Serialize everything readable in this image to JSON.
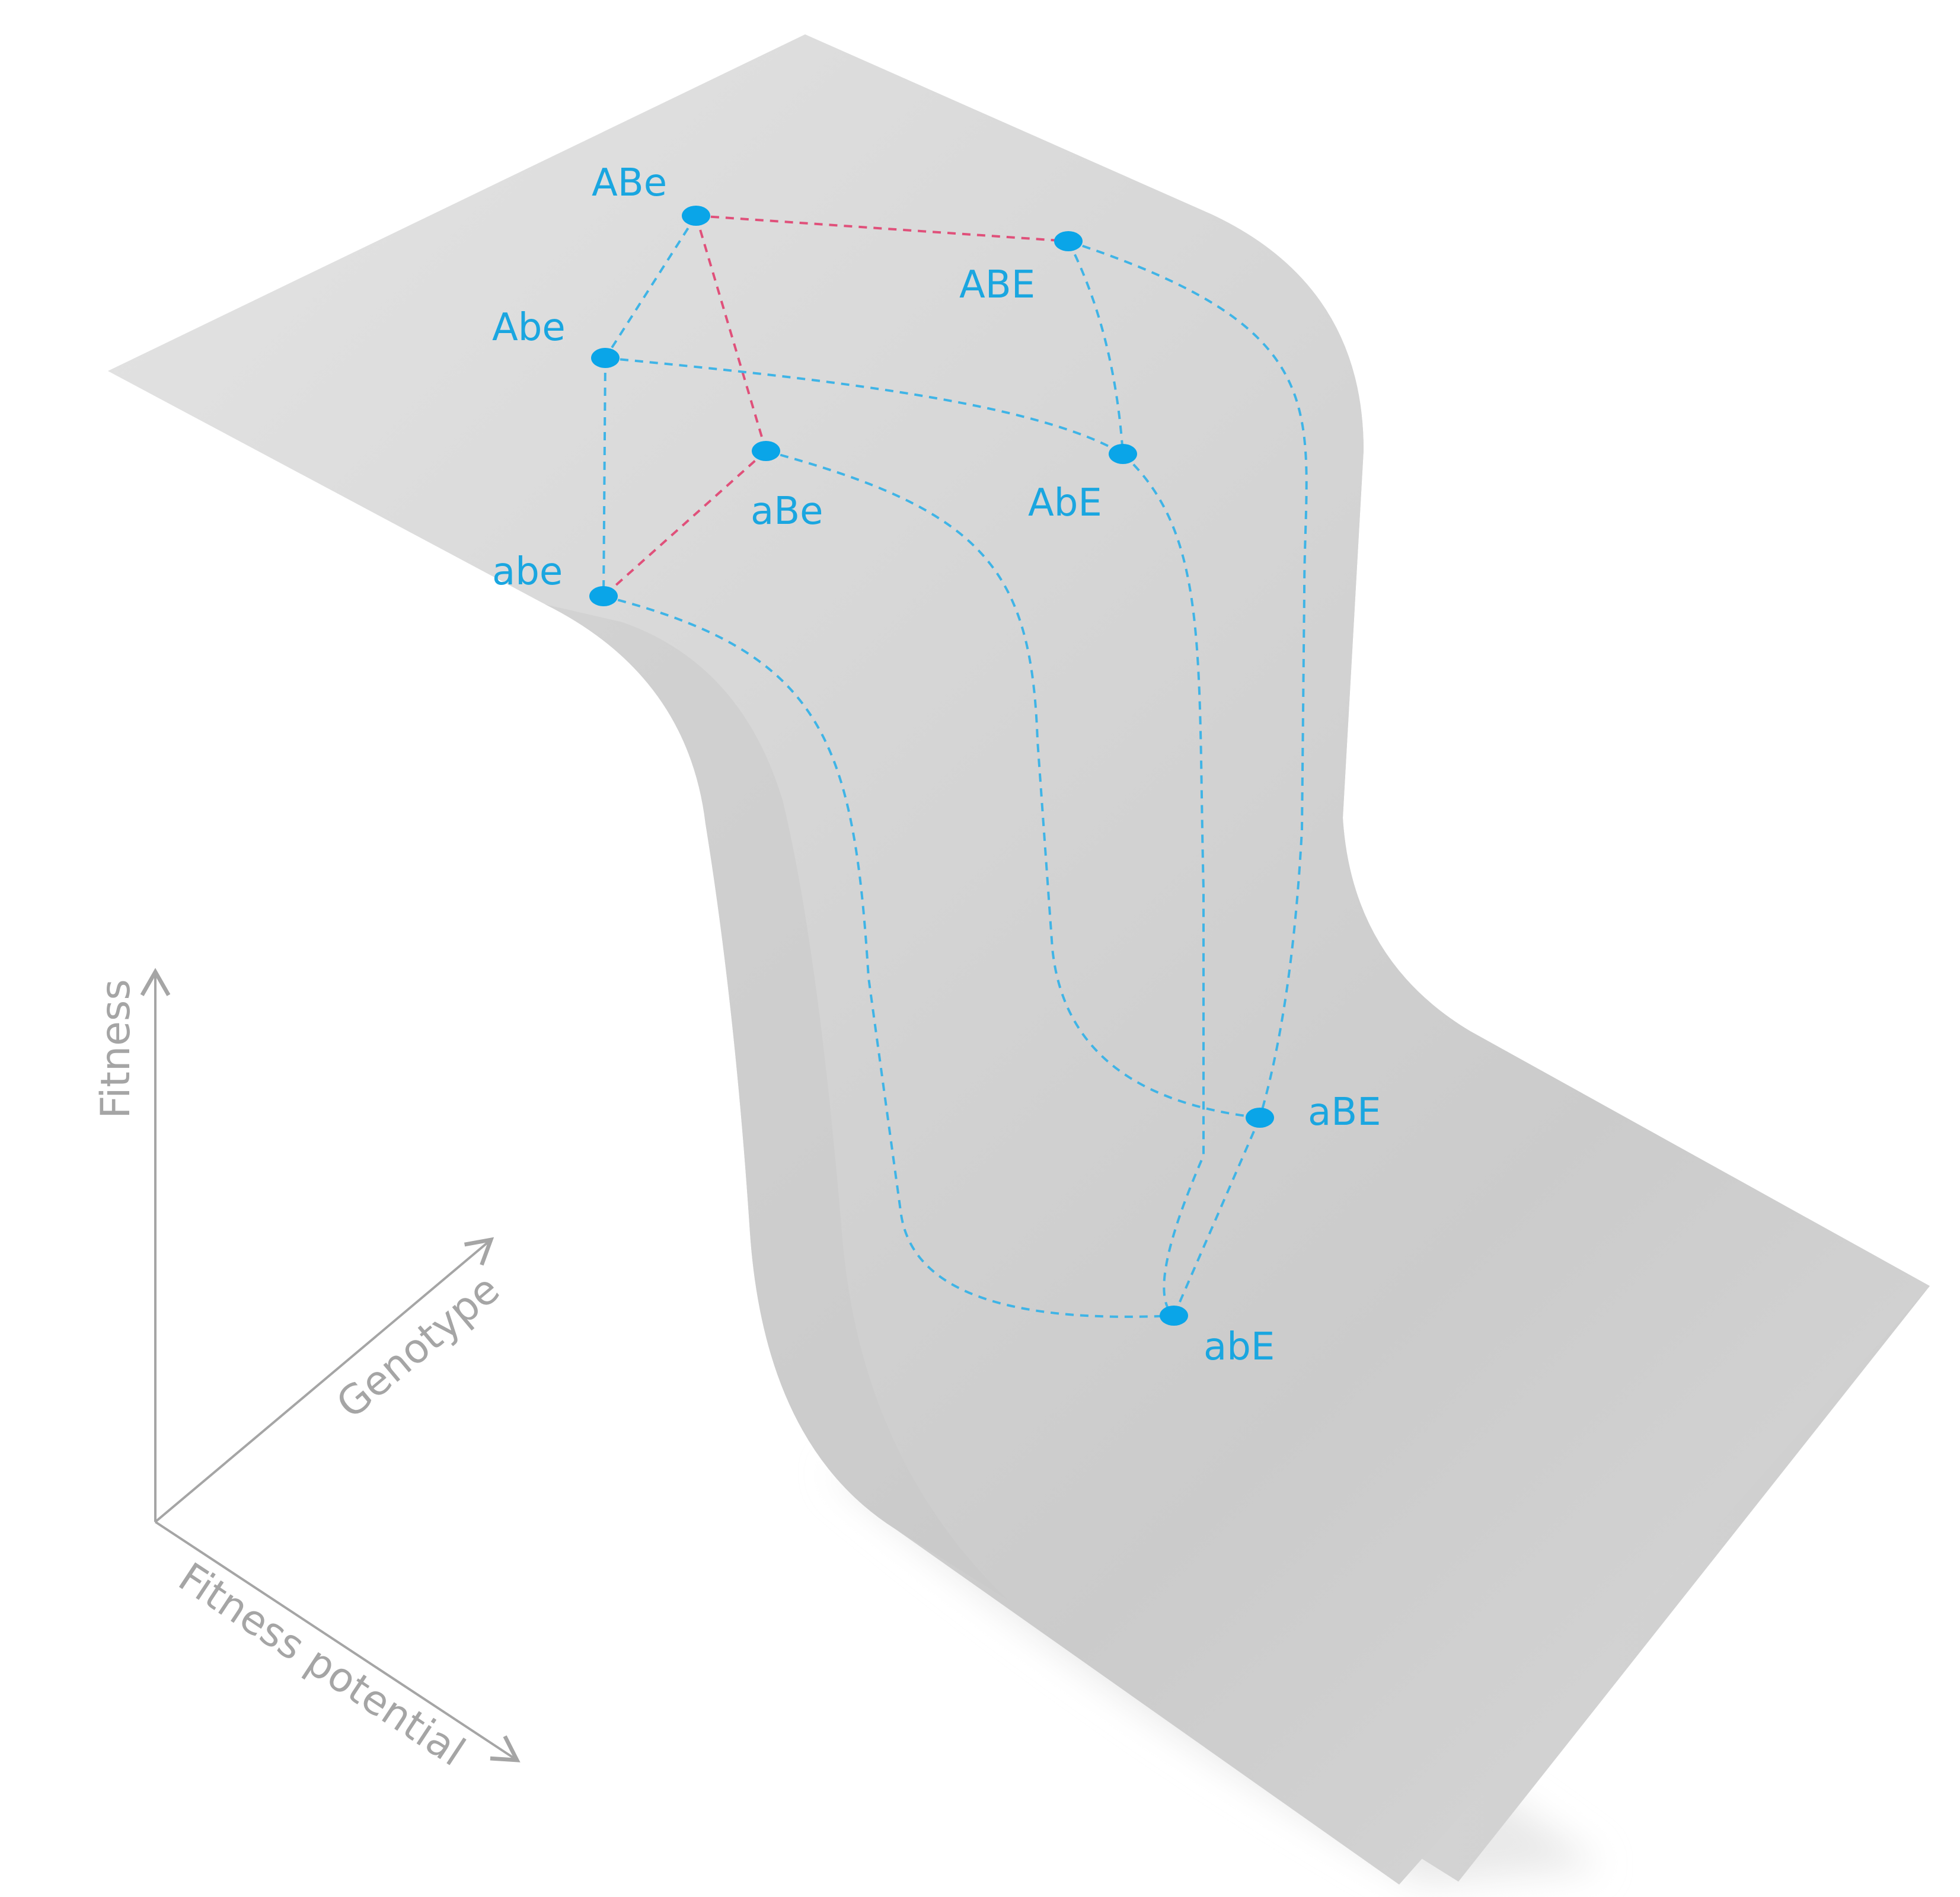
{
  "colors": {
    "node": "#0aa5e8",
    "label": "#1aa6e0",
    "edge_blue": "#3fb4e6",
    "edge_red": "#e0507a",
    "axis": "#a5a5a5",
    "surface": "#d6d6d6"
  },
  "genotypes": [
    {
      "id": "ABe",
      "label": "ABe"
    },
    {
      "id": "ABE",
      "label": "ABE"
    },
    {
      "id": "Abe",
      "label": "Abe"
    },
    {
      "id": "aBe",
      "label": "aBe"
    },
    {
      "id": "AbE",
      "label": "AbE"
    },
    {
      "id": "abe",
      "label": "abe"
    },
    {
      "id": "aBE",
      "label": "aBE"
    },
    {
      "id": "abE",
      "label": "abE"
    }
  ],
  "edges": [
    {
      "from": "ABe",
      "to": "ABE",
      "type": "red"
    },
    {
      "from": "ABe",
      "to": "aBe",
      "type": "red"
    },
    {
      "from": "aBe",
      "to": "abe",
      "type": "red"
    },
    {
      "from": "ABe",
      "to": "Abe",
      "type": "blue"
    },
    {
      "from": "Abe",
      "to": "abe",
      "type": "blue"
    },
    {
      "from": "Abe",
      "to": "AbE",
      "type": "blue"
    },
    {
      "from": "ABE",
      "to": "AbE",
      "type": "blue"
    },
    {
      "from": "ABE",
      "to": "aBE",
      "type": "blue"
    },
    {
      "from": "aBe",
      "to": "aBE",
      "type": "blue"
    },
    {
      "from": "abe",
      "to": "abE",
      "type": "blue"
    },
    {
      "from": "AbE",
      "to": "abE",
      "type": "blue"
    },
    {
      "from": "aBE",
      "to": "abE",
      "type": "blue"
    }
  ],
  "axes": {
    "vertical": "Fitness",
    "diagonal": "Genotype",
    "horizontal": "Fitness potential"
  }
}
